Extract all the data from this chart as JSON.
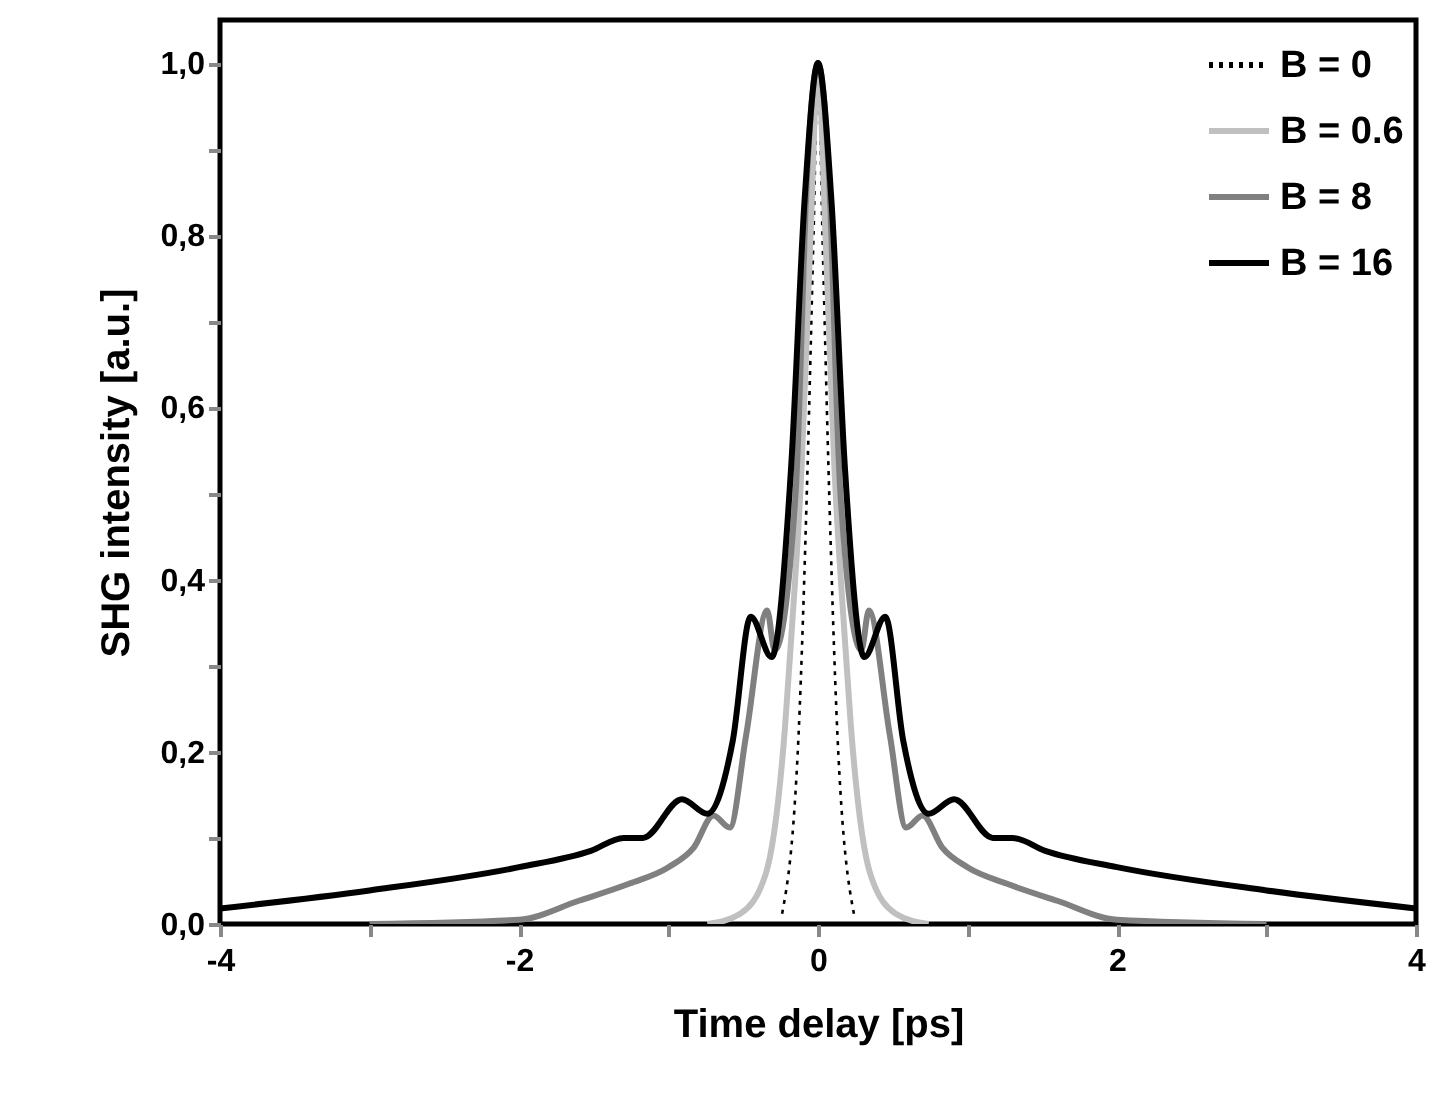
{
  "chart_data": {
    "type": "line",
    "xlabel": "Time delay [ps]",
    "ylabel": "SHG intensity [a.u.]",
    "xlim": [
      -4,
      4
    ],
    "ylim": [
      0,
      1.05
    ],
    "xticks": [
      -4,
      {
        "value": -3,
        "label": null
      },
      -2,
      {
        "value": -1,
        "label": null
      },
      0,
      {
        "value": 1,
        "label": null
      },
      2,
      {
        "value": 3,
        "label": null
      },
      4
    ],
    "yticks": [
      {
        "value": 0,
        "label": "0,0"
      },
      {
        "value": 0.1,
        "label": null
      },
      {
        "value": 0.2,
        "label": "0,2"
      },
      {
        "value": 0.3,
        "label": null
      },
      {
        "value": 0.4,
        "label": "0,4"
      },
      {
        "value": 0.5,
        "label": null
      },
      {
        "value": 0.6,
        "label": "0,6"
      },
      {
        "value": 0.7,
        "label": null
      },
      {
        "value": 0.8,
        "label": "0,8"
      },
      {
        "value": 0.9,
        "label": null
      },
      {
        "value": 1,
        "label": "1,0"
      }
    ],
    "grid": false,
    "legend": "top right",
    "series": [
      {
        "name": "B = 0",
        "color": "#000000",
        "line_style": "dotted",
        "x": [
          -0.24,
          -0.13,
          -0.07,
          -0.03,
          0,
          0.03,
          0.07,
          0.13,
          0.24
        ],
        "values": [
          0.012,
          0.22,
          0.53,
          0.8,
          1.0,
          0.8,
          0.53,
          0.22,
          0.012
        ]
      },
      {
        "name": "B = 0.6",
        "color": "#c0c0c0",
        "x": [
          -0.74,
          -0.52,
          -0.35,
          -0.22,
          -0.18,
          -0.11,
          -0.05,
          0,
          0.05,
          0.11,
          0.18,
          0.22,
          0.35,
          0.52,
          0.74
        ],
        "values": [
          0,
          0.012,
          0.058,
          0.23,
          0.33,
          0.53,
          0.8,
          1.0,
          0.8,
          0.53,
          0.33,
          0.23,
          0.058,
          0.012,
          0
        ]
      },
      {
        "name": "B = 8",
        "color": "#808080",
        "x": [
          -3,
          -2,
          -1.6,
          -1.26,
          -1.0,
          -0.83,
          -0.7,
          -0.59,
          -0.48,
          -0.34,
          -0.29,
          -0.15,
          -0.07,
          0,
          0.07,
          0.15,
          0.29,
          0.34,
          0.48,
          0.59,
          0.7,
          0.83,
          1.0,
          1.26,
          1.6,
          2,
          3
        ],
        "values": [
          0,
          0.005,
          0.027,
          0.047,
          0.066,
          0.089,
          0.126,
          0.112,
          0.22,
          0.364,
          0.318,
          0.5,
          0.88,
          1.0,
          0.88,
          0.5,
          0.318,
          0.364,
          0.22,
          0.112,
          0.126,
          0.089,
          0.066,
          0.047,
          0.027,
          0.005,
          0
        ]
      },
      {
        "name": "B = 16",
        "color": "#000000",
        "x": [
          -4,
          -3,
          -2,
          -1.52,
          -1.3,
          -1.17,
          -0.91,
          -0.74,
          -0.57,
          -0.45,
          -0.31,
          -0.18,
          -0.09,
          0,
          0.09,
          0.18,
          0.31,
          0.45,
          0.57,
          0.74,
          0.91,
          1.17,
          1.3,
          1.52,
          2,
          3,
          4
        ],
        "values": [
          0.018,
          0.039,
          0.066,
          0.085,
          0.1,
          0.1,
          0.145,
          0.128,
          0.213,
          0.357,
          0.31,
          0.53,
          0.84,
          1.0,
          0.84,
          0.53,
          0.31,
          0.357,
          0.213,
          0.128,
          0.145,
          0.1,
          0.1,
          0.085,
          0.066,
          0.039,
          0.018
        ]
      }
    ]
  }
}
